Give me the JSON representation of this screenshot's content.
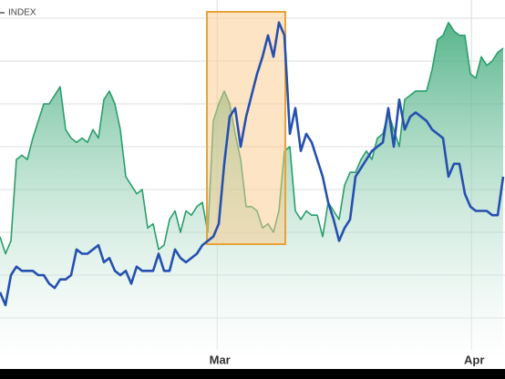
{
  "chart_data": {
    "type": "line",
    "legend": "top-left",
    "grid": true,
    "xlim": [
      0,
      92
    ],
    "xticks": [
      {
        "value": 39.7,
        "label": "Mar"
      },
      {
        "value": 86.2,
        "label": "Apr"
      }
    ],
    "ylim": [
      0,
      80
    ],
    "yticks": [
      10,
      20,
      30,
      40,
      50,
      60,
      70,
      80
    ],
    "series": [
      {
        "color": "#2a9e6c",
        "area": true,
        "values": [
          29,
          25,
          28,
          47,
          48,
          47,
          52,
          56,
          60,
          60,
          62,
          64,
          54,
          52,
          51,
          52,
          51,
          54,
          52,
          61,
          63,
          60,
          54,
          43,
          41,
          39,
          40,
          31,
          32,
          26,
          27,
          33,
          35,
          30,
          35,
          34,
          36,
          37,
          30,
          56,
          60,
          63,
          60,
          53,
          47,
          36,
          36,
          35,
          31,
          32,
          30,
          35,
          49,
          50,
          35,
          33,
          35,
          34,
          34,
          29,
          37,
          35,
          33,
          41,
          44,
          44,
          47,
          49,
          47,
          52,
          53,
          58,
          54,
          50,
          61,
          62,
          63,
          63,
          63,
          68,
          75,
          76,
          79,
          77,
          76,
          76,
          67,
          66,
          71,
          69,
          70,
          72,
          73
        ]
      },
      {
        "name": "INDEX",
        "color": "#2550b0",
        "values": [
          16,
          13,
          20,
          22,
          21,
          21,
          21,
          20,
          20,
          18,
          17,
          19,
          19,
          20,
          26,
          25,
          25,
          26,
          27,
          23,
          24,
          21,
          20,
          21,
          18,
          22,
          21,
          21,
          21,
          25,
          21,
          21,
          26,
          24,
          23,
          24,
          25,
          27,
          28,
          29,
          32,
          46,
          57,
          59,
          50,
          57,
          62,
          67,
          71,
          76,
          71,
          79,
          76,
          53,
          59,
          49,
          53,
          51,
          47,
          43,
          37,
          33,
          28,
          31,
          33,
          43,
          45,
          47,
          49,
          50,
          51,
          59,
          50,
          61,
          54,
          57,
          58,
          57,
          56,
          54,
          53,
          52,
          43,
          46,
          46,
          39,
          36,
          35,
          35,
          35,
          34,
          34,
          43
        ]
      }
    ]
  }
}
